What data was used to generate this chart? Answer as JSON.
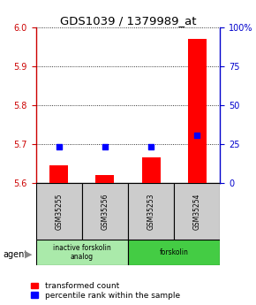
{
  "title": "GDS1039 / 1379989_at",
  "samples": [
    "GSM35255",
    "GSM35256",
    "GSM35253",
    "GSM35254"
  ],
  "red_values": [
    5.645,
    5.62,
    5.665,
    5.97
  ],
  "blue_values": [
    5.693,
    5.693,
    5.693,
    5.723
  ],
  "ylim_left": [
    5.6,
    6.0
  ],
  "yticks_left": [
    5.6,
    5.7,
    5.8,
    5.9,
    6.0
  ],
  "yticks_right": [
    0,
    25,
    50,
    75,
    100
  ],
  "groups": [
    {
      "label": "inactive forskolin\nanalog",
      "indices": [
        0,
        1
      ],
      "color": "#aaeaaa"
    },
    {
      "label": "forskolin",
      "indices": [
        2,
        3
      ],
      "color": "#44cc44"
    }
  ],
  "legend_red": "transformed count",
  "legend_blue": "percentile rank within the sample",
  "bar_width": 0.4,
  "agent_label": "agent",
  "title_fontsize": 9.5,
  "tick_fontsize": 7,
  "label_fontsize": 7,
  "legend_fontsize": 6.5,
  "axis_color_left": "#cc0000",
  "axis_color_right": "#0000cc",
  "sample_box_color": "#cccccc"
}
